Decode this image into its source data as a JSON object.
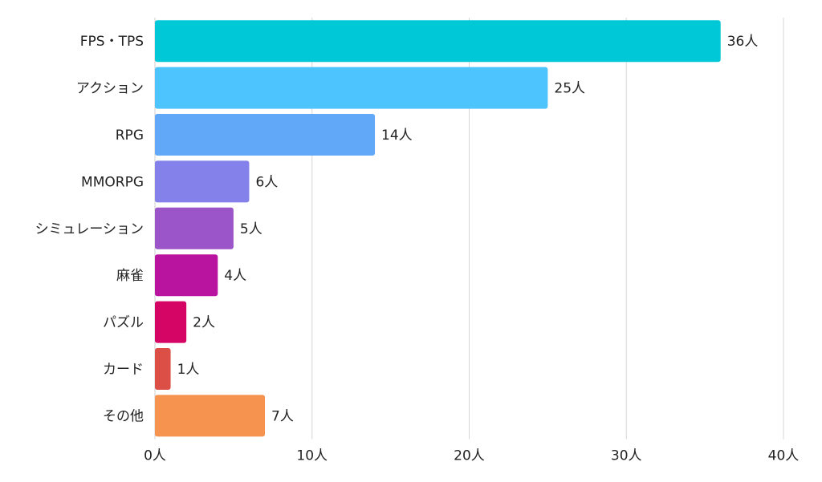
{
  "chart_data": {
    "type": "bar",
    "orientation": "horizontal",
    "title": "",
    "xlabel": "",
    "ylabel": "",
    "unit": "人",
    "categories": [
      "FPS・TPS",
      "アクション",
      "RPG",
      "MMORPG",
      "シミュレーション",
      "麻雀",
      "パズル",
      "カード",
      "その他"
    ],
    "values": [
      36,
      25,
      14,
      6,
      5,
      4,
      2,
      1,
      7
    ],
    "value_labels": [
      "36人",
      "25人",
      "14人",
      "6人",
      "5人",
      "4人",
      "2人",
      "1人",
      "7人"
    ],
    "colors": [
      "#00c8d7",
      "#4dc4fd",
      "#62a8f8",
      "#8482ea",
      "#9b55c8",
      "#b914a0",
      "#d40565",
      "#dc4f47",
      "#f6934f"
    ],
    "xlim": [
      0,
      40
    ],
    "ticks": [
      0,
      10,
      20,
      30,
      40
    ],
    "tick_labels": [
      "0人",
      "10人",
      "20人",
      "30人",
      "40人"
    ],
    "grid": true,
    "legend": "none"
  }
}
